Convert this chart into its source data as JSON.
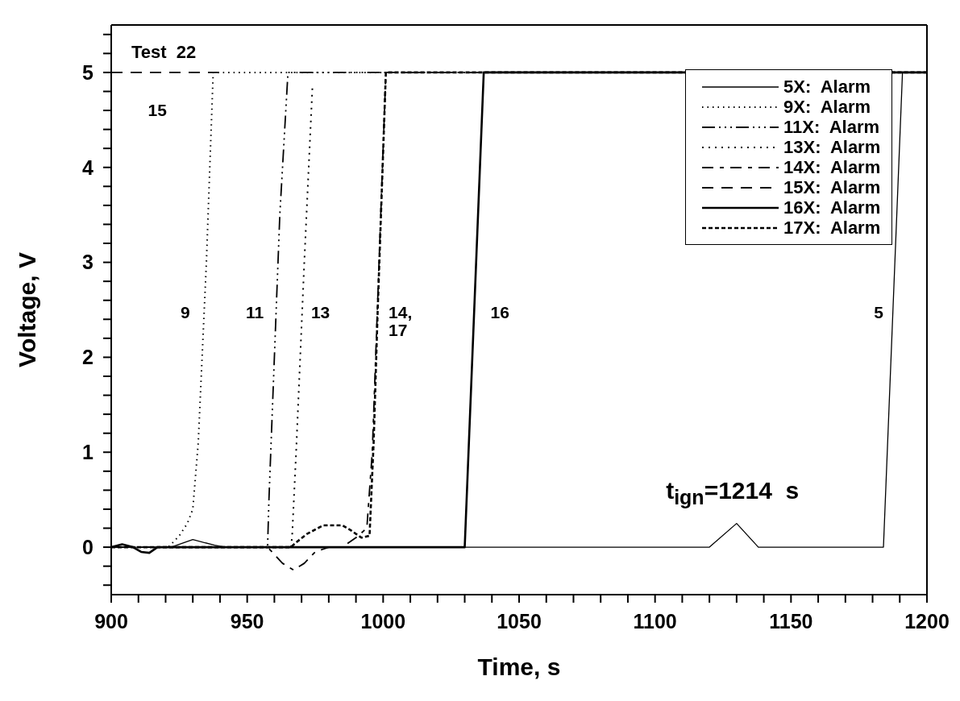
{
  "chart_data": {
    "type": "line",
    "xlabel": "Time,  s",
    "ylabel": "Voltage,  V",
    "xlim": [
      900,
      1200
    ],
    "ylim": [
      -0.5,
      5.5
    ],
    "xticks": [
      900,
      {
        "value": 910,
        "label": null
      },
      {
        "value": 920,
        "label": null
      },
      {
        "value": 930,
        "label": null
      },
      {
        "value": 940,
        "label": null
      },
      950,
      {
        "value": 960,
        "label": null
      },
      {
        "value": 970,
        "label": null
      },
      {
        "value": 980,
        "label": null
      },
      {
        "value": 990,
        "label": null
      },
      1000,
      {
        "value": 1010,
        "label": null
      },
      {
        "value": 1020,
        "label": null
      },
      {
        "value": 1030,
        "label": null
      },
      {
        "value": 1040,
        "label": null
      },
      1050,
      {
        "value": 1060,
        "label": null
      },
      {
        "value": 1070,
        "label": null
      },
      {
        "value": 1080,
        "label": null
      },
      {
        "value": 1090,
        "label": null
      },
      1100,
      {
        "value": 1110,
        "label": null
      },
      {
        "value": 1120,
        "label": null
      },
      {
        "value": 1130,
        "label": null
      },
      {
        "value": 1140,
        "label": null
      },
      1150,
      {
        "value": 1160,
        "label": null
      },
      {
        "value": 1170,
        "label": null
      },
      {
        "value": 1180,
        "label": null
      },
      {
        "value": 1190,
        "label": null
      },
      1200
    ],
    "yticks": [
      {
        "value": -0.4,
        "label": null
      },
      {
        "value": -0.2,
        "label": null
      },
      0,
      {
        "value": 0.2,
        "label": null
      },
      {
        "value": 0.4,
        "label": null
      },
      {
        "value": 0.6,
        "label": null
      },
      {
        "value": 0.8,
        "label": null
      },
      1,
      {
        "value": 1.2,
        "label": null
      },
      {
        "value": 1.4,
        "label": null
      },
      {
        "value": 1.6,
        "label": null
      },
      {
        "value": 1.8,
        "label": null
      },
      2,
      {
        "value": 2.2,
        "label": null
      },
      {
        "value": 2.4,
        "label": null
      },
      {
        "value": 2.6,
        "label": null
      },
      {
        "value": 2.8,
        "label": null
      },
      3,
      {
        "value": 3.2,
        "label": null
      },
      {
        "value": 3.4,
        "label": null
      },
      {
        "value": 3.6,
        "label": null
      },
      {
        "value": 3.8,
        "label": null
      },
      4,
      {
        "value": 4.2,
        "label": null
      },
      {
        "value": 4.4,
        "label": null
      },
      {
        "value": 4.6,
        "label": null
      },
      {
        "value": 4.8,
        "label": null
      },
      5,
      {
        "value": 5.2,
        "label": null
      },
      {
        "value": 5.4,
        "label": null
      }
    ],
    "grid": false,
    "legend": "top right",
    "marker": "none",
    "series": [
      {
        "name": "5X:  Alarm",
        "color": "#000000",
        "line_style": "solid",
        "x": [
          900,
          922,
          930,
          938,
          942,
          1120,
          1130,
          1138,
          1184,
          1191,
          1200
        ],
        "values": [
          0,
          0,
          0.08,
          0.02,
          0,
          0,
          0.25,
          0,
          0,
          5,
          5
        ]
      },
      {
        "name": "9X:  Alarm",
        "color": "#000000",
        "line_style": "dotted",
        "x": [
          900,
          921,
          925,
          928,
          930,
          932,
          935,
          937.5,
          1200
        ],
        "values": [
          0,
          0,
          0.12,
          0.25,
          0.4,
          1.1,
          3,
          5,
          5
        ]
      },
      {
        "name": "11X:  Alarm",
        "color": "#000000",
        "line_style": "dashed",
        "x": [
          900,
          957.5,
          958,
          960,
          962,
          965,
          1200
        ],
        "values": [
          0,
          0,
          0.5,
          2,
          3.5,
          5,
          5
        ]
      },
      {
        "name": "13X:  Alarm",
        "color": "#000000",
        "line_style": "dotted",
        "x": [
          966,
          966.5,
          968,
          971,
          974
        ],
        "values": [
          0,
          0.1,
          1,
          3,
          4.85
        ]
      },
      {
        "name": "14X:  Alarm",
        "color": "#000000",
        "line_style": "dashed",
        "x": [
          900,
          957.5,
          963,
          967,
          971,
          975,
          980,
          985,
          990,
          994,
          996,
          1001,
          1200
        ],
        "values": [
          0,
          0,
          -0.17,
          -0.24,
          -0.17,
          -0.05,
          0,
          0,
          0.1,
          0.2,
          1,
          5,
          5
        ]
      },
      {
        "name": "15X:  Alarm",
        "color": "#000000",
        "line_style": "dashed",
        "x": [
          900,
          940
        ],
        "values": [
          5,
          5
        ]
      },
      {
        "name": "16X:  Alarm",
        "color": "#000000",
        "line_style": "solid",
        "x": [
          900,
          904,
          908,
          911,
          914,
          917,
          1030,
          1037,
          1200
        ],
        "values": [
          0,
          0.03,
          0,
          -0.05,
          -0.06,
          0,
          0,
          5,
          5
        ]
      },
      {
        "name": "17X:  Alarm",
        "color": "#000000",
        "line_style": "dashed",
        "x": [
          900,
          966,
          968,
          972,
          978,
          985,
          988,
          992,
          995,
          996.5,
          998,
          1001,
          1200
        ],
        "values": [
          0,
          0,
          0.05,
          0.14,
          0.23,
          0.23,
          0.18,
          0.1,
          0.12,
          1.1,
          2.5,
          5,
          5
        ]
      }
    ],
    "annotations": [
      "Test  22",
      "15",
      "9",
      "11",
      "13",
      "14,\n17",
      "16",
      "5",
      "t$_{ign}$=1214  s"
    ]
  }
}
